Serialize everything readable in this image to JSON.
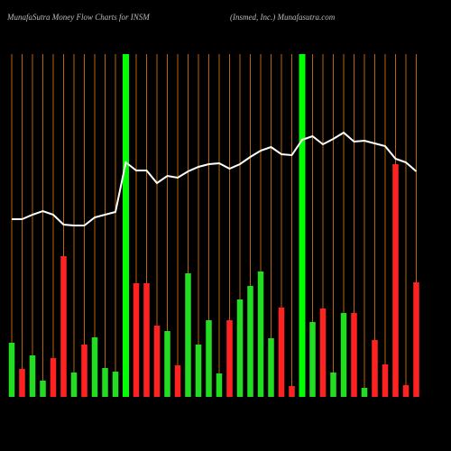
{
  "chart_data": {
    "type": "bar",
    "title": "MunafaSutra  Money Flow  Charts for INSM",
    "subtitle": "(Insmed,  Inc.) Munafasutra.com",
    "categories": [
      null,
      null,
      null,
      null,
      null,
      null,
      null,
      null,
      null,
      null,
      null,
      null,
      null,
      null,
      null,
      null,
      null,
      null,
      null,
      null,
      null,
      null,
      null,
      null,
      null,
      null,
      null,
      null,
      null,
      null,
      null,
      null,
      null,
      null,
      null,
      null,
      null,
      null,
      null,
      null
    ],
    "values": [
      60,
      31,
      46,
      18,
      43,
      156,
      27,
      58,
      66,
      32,
      28,
      null,
      126,
      126,
      79,
      73,
      35,
      137,
      58,
      85,
      26,
      85,
      108,
      123,
      139,
      65,
      99,
      12,
      null,
      83,
      98,
      27,
      93,
      93,
      10,
      63,
      36,
      258,
      13,
      127
    ],
    "bar_colors": [
      "#22dd22",
      "#ff2222",
      "#22dd22",
      "#22dd22",
      "#ff2222",
      "#ff2222",
      "#22dd22",
      "#ff2222",
      "#22dd22",
      "#22dd22",
      "#22dd22",
      null,
      "#ff2222",
      "#ff2222",
      "#ff2222",
      "#22dd22",
      "#ff2222",
      "#22dd22",
      "#22dd22",
      "#22dd22",
      "#22dd22",
      "#ff2222",
      "#22dd22",
      "#22dd22",
      "#22dd22",
      "#22dd22",
      "#ff2222",
      "#ff2222",
      null,
      "#22dd22",
      "#ff2222",
      "#22dd22",
      "#22dd22",
      "#ff2222",
      "#22dd22",
      "#ff2222",
      "#ff2222",
      "#ff2222",
      "#ff2222",
      "#ff2222"
    ],
    "line_values": [
      197,
      197,
      202,
      206,
      202,
      191,
      190,
      190,
      199,
      202,
      205,
      260,
      251,
      251,
      237,
      245,
      243,
      250,
      255,
      258,
      259,
      253,
      258,
      266,
      273,
      277,
      269,
      268,
      285,
      289,
      280,
      286,
      293,
      283,
      284,
      281,
      278,
      264,
      260,
      250
    ],
    "line_color": "#ffffff",
    "highlight_indices": [
      11,
      28
    ],
    "highlight_color": "#00ff00",
    "grid_color": "#b8650a",
    "ylim": [
      0,
      380
    ]
  }
}
